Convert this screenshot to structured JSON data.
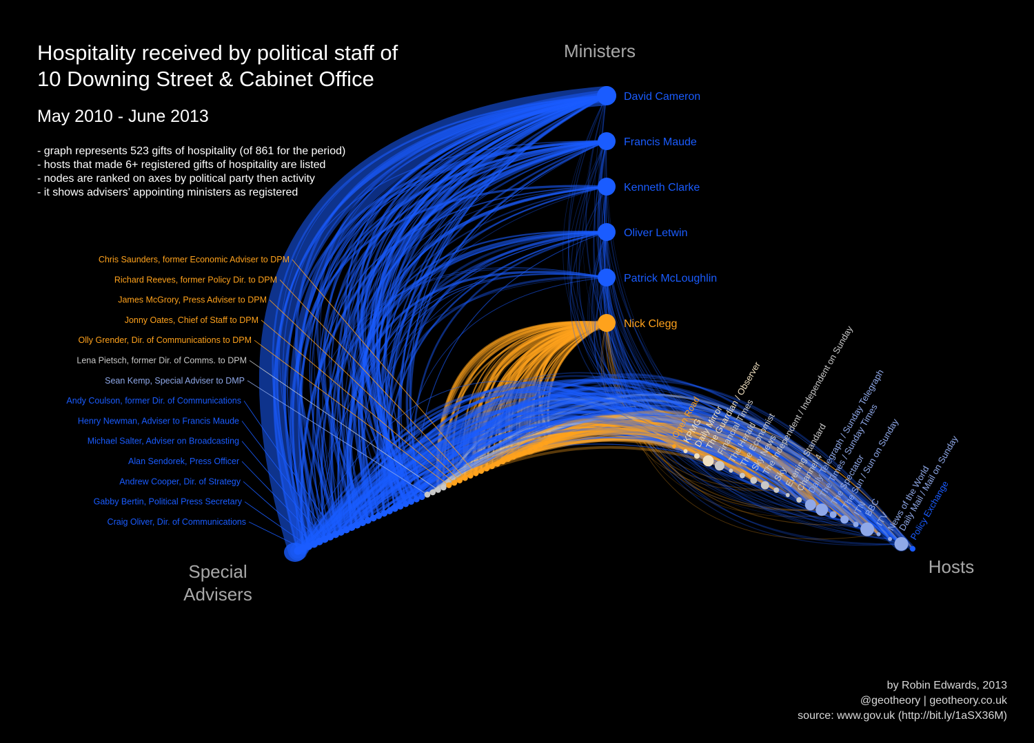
{
  "title_line1": "Hospitality received by political staff of",
  "title_line2": "10 Downing Street & Cabinet Office",
  "subtitle": "May 2010 - June 2013",
  "notes": [
    "- graph represents 523 gifts of hospitality (of 861 for the period)",
    "- hosts that made 6+ registered gifts of hospitality are listed",
    "- nodes are ranked on axes by political party then activity",
    "- it shows advisers’ appointing ministers as registered"
  ],
  "axis_labels": {
    "ministers": "Ministers",
    "advisers_line1": "Special",
    "advisers_line2": "Advisers",
    "hosts": "Hosts"
  },
  "colors": {
    "conservative": "#1a5cff",
    "libdem": "#ffa21c",
    "neutral": "#c8c8c8",
    "pale": "#f0e0c0",
    "lightblue": "#8fa8e8",
    "background": "#000000"
  },
  "ministers": [
    {
      "name": "David Cameron",
      "party": "conservative",
      "weight": 10
    },
    {
      "name": "Francis Maude",
      "party": "conservative",
      "weight": 4
    },
    {
      "name": "Kenneth Clarke",
      "party": "conservative",
      "weight": 2.5
    },
    {
      "name": "Oliver Letwin",
      "party": "conservative",
      "weight": 2
    },
    {
      "name": "Patrick McLoughlin",
      "party": "conservative",
      "weight": 1
    },
    {
      "name": "Nick Clegg",
      "party": "libdem",
      "weight": 7
    }
  ],
  "advisers": [
    {
      "label": "Chris Saunders, former Economic Adviser to DPM",
      "party": "libdem"
    },
    {
      "label": "Richard Reeves, former Policy Dir. to DPM",
      "party": "libdem"
    },
    {
      "label": "James McGrory, Press Adviser to DPM",
      "party": "libdem"
    },
    {
      "label": "Jonny Oates, Chief of Staff to DPM",
      "party": "libdem"
    },
    {
      "label": "Olly Grender, Dir. of Communications to DPM",
      "party": "libdem"
    },
    {
      "label": "Lena Pietsch, former Dir. of Comms. to DPM",
      "party": "neutral"
    },
    {
      "label": "Sean Kemp, Special Adviser to DMP",
      "party": "lightblue"
    },
    {
      "label": "Andy Coulson, former Dir. of Communications",
      "party": "conservative"
    },
    {
      "label": "Henry Newman, Adviser to Francis Maude",
      "party": "conservative"
    },
    {
      "label": "Michael Salter, Adviser on Broadcasting",
      "party": "conservative"
    },
    {
      "label": "Alan Sendorek, Press Officer",
      "party": "conservative"
    },
    {
      "label": "Andrew Cooper, Dir. of Strategy",
      "party": "conservative"
    },
    {
      "label": "Gabby Bertin, Political Press Secretary",
      "party": "conservative"
    },
    {
      "label": "Craig Oliver, Dir. of Communications",
      "party": "conservative"
    }
  ],
  "hosts": [
    {
      "name": "Open Road",
      "color": "libdem",
      "size": 3
    },
    {
      "name": "KPMG",
      "color": "pale",
      "size": 3
    },
    {
      "name": "Daily Mirror",
      "color": "pale",
      "size": 4
    },
    {
      "name": "The Guardian / Observer",
      "color": "pale",
      "size": 8
    },
    {
      "name": "Financial Times",
      "color": "neutral",
      "size": 7
    },
    {
      "name": "The Herald",
      "color": "neutral",
      "size": 3
    },
    {
      "name": "The Economist",
      "color": "neutral",
      "size": 4
    },
    {
      "name": "Sky News",
      "color": "neutral",
      "size": 5
    },
    {
      "name": "The Independent / Independent on Sunday",
      "color": "neutral",
      "size": 6
    },
    {
      "name": "Sky",
      "color": "neutral",
      "size": 4
    },
    {
      "name": "Evening Standard",
      "color": "neutral",
      "size": 3
    },
    {
      "name": "Channel 4",
      "color": "neutral",
      "size": 4
    },
    {
      "name": "Daily Telegraph / Sunday Telegraph",
      "color": "lightblue",
      "size": 8
    },
    {
      "name": "The Times / Sunday Times",
      "color": "lightblue",
      "size": 9
    },
    {
      "name": "The Spectator",
      "color": "lightblue",
      "size": 5
    },
    {
      "name": "The Sun / Sun on Sunday",
      "color": "lightblue",
      "size": 6
    },
    {
      "name": "ITN",
      "color": "lightblue",
      "size": 4
    },
    {
      "name": "BBC",
      "color": "lightblue",
      "size": 10
    },
    {
      "name": "ITV",
      "color": "lightblue",
      "size": 3
    },
    {
      "name": "News of the World",
      "color": "lightblue",
      "size": 3
    },
    {
      "name": "Daily Mail / Mail on Sunday",
      "color": "lightblue",
      "size": 10
    },
    {
      "name": "Policy Exchange",
      "color": "conservative",
      "size": 4
    }
  ],
  "credits": {
    "line1": "by Robin Edwards, 2013",
    "line2": "@geotheory | geotheory.co.uk",
    "line3": "source: www.gov.uk (http://bit.ly/1aSX36M)"
  }
}
